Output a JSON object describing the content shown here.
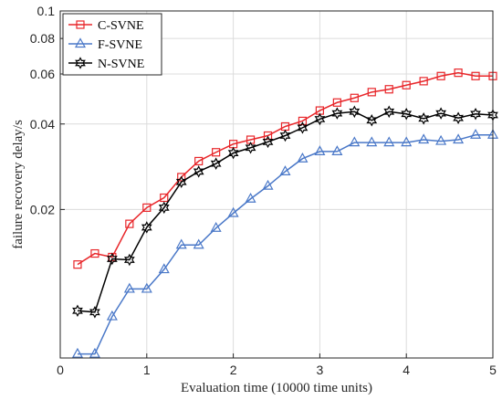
{
  "chart_data": {
    "type": "line",
    "title": "",
    "xlabel": "Evaluation time (10000 time units)",
    "ylabel": "failure recovery delay/s",
    "xlim": [
      0,
      5
    ],
    "ylim": [
      0.006,
      0.1
    ],
    "y_scale": "log",
    "grid": true,
    "legend_position": "top-left",
    "x_ticks": [
      0,
      1,
      2,
      3,
      4,
      5
    ],
    "x_tick_labels": [
      "0",
      "1",
      "2",
      "3",
      "4",
      "5"
    ],
    "y_ticks": [
      0.02,
      0.04,
      0.06,
      0.08,
      0.1
    ],
    "y_tick_labels": [
      "0.02",
      "0.04",
      "0.06",
      "0.08",
      "0.1"
    ],
    "x": [
      0.2,
      0.4,
      0.6,
      0.8,
      1.0,
      1.2,
      1.4,
      1.6,
      1.8,
      2.0,
      2.2,
      2.4,
      2.6,
      2.8,
      3.0,
      3.2,
      3.4,
      3.6,
      3.8,
      4.0,
      4.2,
      4.4,
      4.6,
      4.8,
      5.0
    ],
    "series": [
      {
        "name": "C-SVNE",
        "color": "#e8262a",
        "marker": "square",
        "values": [
          0.0128,
          0.014,
          0.0136,
          0.0178,
          0.0203,
          0.022,
          0.026,
          0.0296,
          0.0318,
          0.034,
          0.0352,
          0.0364,
          0.0392,
          0.041,
          0.0446,
          0.0476,
          0.0494,
          0.0518,
          0.053,
          0.0548,
          0.0566,
          0.059,
          0.0606,
          0.059,
          0.059
        ]
      },
      {
        "name": "F-SVNE",
        "color": "#4a78c8",
        "marker": "triangle",
        "values": [
          0.0062,
          0.0062,
          0.0084,
          0.0105,
          0.0105,
          0.0123,
          0.015,
          0.015,
          0.0172,
          0.0194,
          0.0218,
          0.0242,
          0.0272,
          0.0302,
          0.032,
          0.032,
          0.0344,
          0.0344,
          0.0344,
          0.0344,
          0.0352,
          0.0348,
          0.0352,
          0.0366,
          0.0366
        ]
      },
      {
        "name": "N-SVNE",
        "color": "#000000",
        "marker": "hexagram",
        "values": [
          0.0088,
          0.0087,
          0.0134,
          0.0133,
          0.0173,
          0.0203,
          0.025,
          0.0272,
          0.029,
          0.0316,
          0.033,
          0.0346,
          0.0364,
          0.0388,
          0.0416,
          0.0436,
          0.0442,
          0.0412,
          0.0442,
          0.0434,
          0.0418,
          0.0436,
          0.042,
          0.0434,
          0.043
        ]
      }
    ]
  }
}
